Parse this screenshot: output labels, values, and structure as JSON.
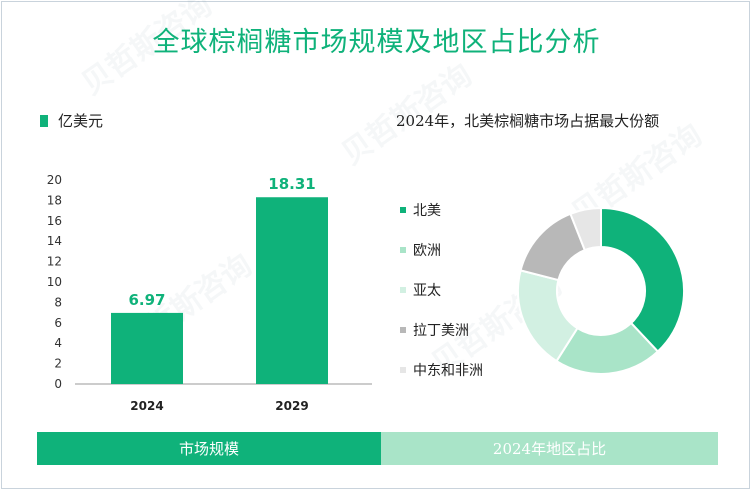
{
  "title": "全球棕榈糖市场规模及地区占比分析",
  "unit_legend": "亿美元",
  "right_title": "2024年，北美棕榈糖市场占据最大份额",
  "bands": {
    "left": "市场规模",
    "right": "2024年地区占比"
  },
  "colors": {
    "accent": "#0fb27a",
    "band_right": "#a9e4c8"
  },
  "chart_data": [
    {
      "type": "bar",
      "categories": [
        "2024",
        "2029"
      ],
      "values": [
        6.97,
        18.31
      ],
      "data_labels": [
        "6.97",
        "18.31"
      ],
      "ylim": [
        0,
        20
      ],
      "yticks": [
        0,
        2,
        4,
        6,
        8,
        10,
        12,
        14,
        16,
        18,
        20
      ],
      "color": "#0fb27a",
      "grid": false
    },
    {
      "type": "pie",
      "donut": true,
      "labels": [
        "北美",
        "欧洲",
        "亚太",
        "拉丁美洲",
        "中东和非洲"
      ],
      "values": [
        38,
        21,
        20,
        15,
        6
      ],
      "colors": [
        "#0fb27a",
        "#a9e4c8",
        "#d2f0e2",
        "#b8b8b8",
        "#e6e6e6"
      ],
      "legend_position": "left"
    }
  ]
}
